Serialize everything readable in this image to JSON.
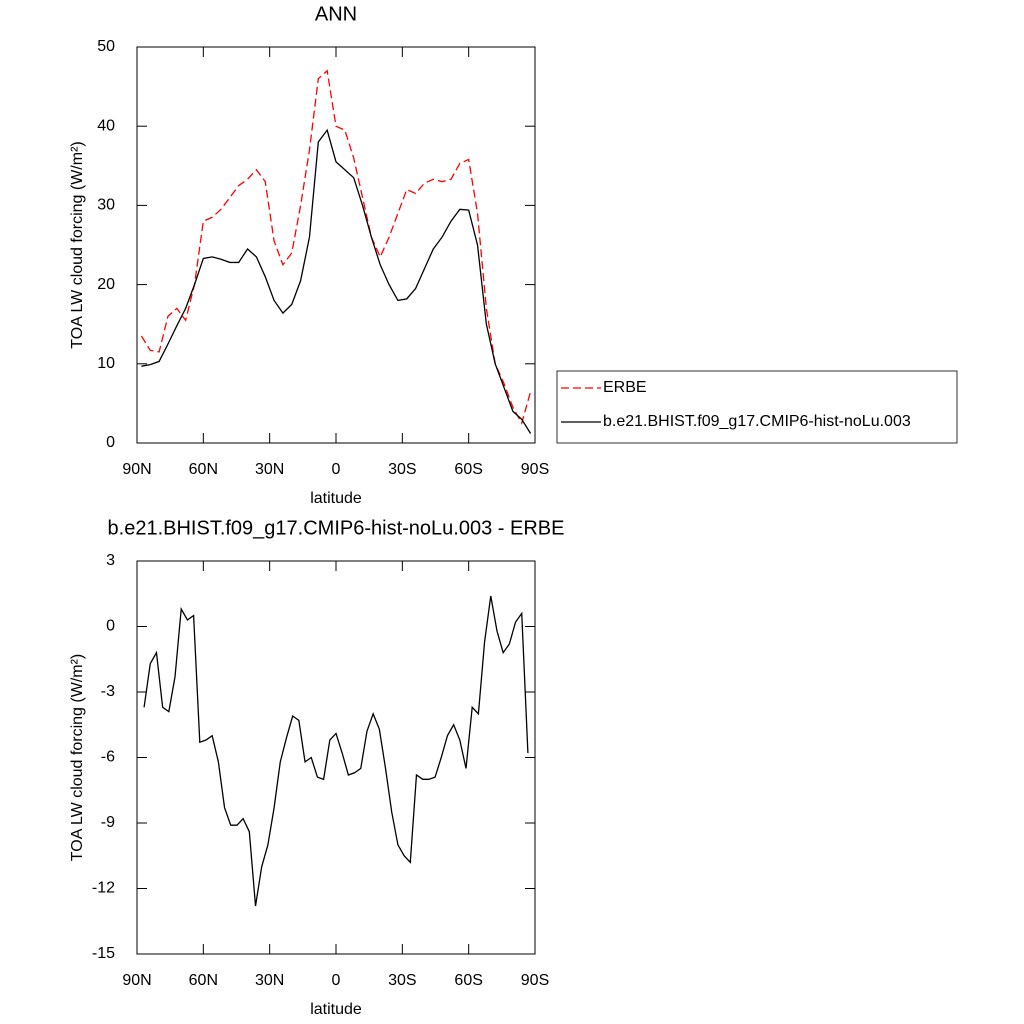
{
  "chart_data": [
    {
      "type": "line",
      "title": "ANN",
      "xlabel": "latitude",
      "ylabel": "TOA LW cloud forcing (W/m²)",
      "x": [
        88,
        84,
        80,
        76,
        72,
        68,
        64,
        60,
        56,
        52,
        48,
        44,
        40,
        36,
        32,
        28,
        24,
        20,
        16,
        12,
        8,
        4,
        0,
        -4,
        -8,
        -12,
        -16,
        -20,
        -24,
        -28,
        -32,
        -36,
        -40,
        -44,
        -48,
        -52,
        -56,
        -60,
        -64,
        -68,
        -72,
        -76,
        -80,
        -84,
        -88
      ],
      "series": [
        {
          "name": "ERBE",
          "color": "#ff0000",
          "linestyle": "dashed",
          "values": [
            13.5,
            11.7,
            11.5,
            16,
            17,
            15.5,
            20,
            28,
            28.5,
            29.5,
            31,
            32.5,
            33.3,
            34.5,
            33,
            25.5,
            22.5,
            24,
            30,
            37,
            46,
            47,
            40,
            39.5,
            36,
            31,
            26,
            23.5,
            26,
            29,
            32,
            31.5,
            32.8,
            33.3,
            33,
            33.3,
            35.3,
            35.8,
            29,
            17,
            10,
            7.5,
            4.5,
            2.5,
            6.5
          ]
        },
        {
          "name": "b.e21.BHIST.f09_g17.CMIP6-hist-noLu.003",
          "color": "#000000",
          "linestyle": "solid",
          "values": [
            9.7,
            9.9,
            10.3,
            12.5,
            14.8,
            17,
            20,
            23.3,
            23.5,
            23.2,
            22.8,
            22.8,
            24.5,
            23.5,
            21,
            18,
            16.4,
            17.5,
            20.5,
            26,
            38,
            39.5,
            35.5,
            34.5,
            33.5,
            30,
            26,
            22.5,
            20,
            18,
            18.2,
            19.5,
            22,
            24.5,
            26,
            28,
            29.5,
            29.4,
            25,
            15,
            10,
            7,
            4,
            3,
            1.2
          ]
        }
      ],
      "xlim": [
        90,
        -90
      ],
      "xticks": [
        {
          "value": 90,
          "label": "90N"
        },
        {
          "value": 60,
          "label": "60N"
        },
        {
          "value": 30,
          "label": "30N"
        },
        0,
        {
          "value": -30,
          "label": "30S"
        },
        {
          "value": -60,
          "label": "60S"
        },
        {
          "value": -90,
          "label": "90S"
        }
      ],
      "ylim": [
        0,
        50
      ],
      "yticks": [
        0,
        10,
        20,
        30,
        40,
        50
      ],
      "legend": "right"
    },
    {
      "type": "line",
      "title": "b.e21.BHIST.f09_g17.CMIP6-hist-noLu.003 - ERBE",
      "xlabel": "latitude",
      "ylabel": "TOA LW cloud forcing (W/m²)",
      "x": [
        86.8,
        84,
        81.2,
        78.4,
        75.6,
        72.8,
        70,
        67.2,
        64.4,
        61.6,
        58.8,
        56,
        53.2,
        50.4,
        47.6,
        44.8,
        42,
        39.2,
        36.4,
        33.6,
        30.8,
        28,
        25.2,
        22.4,
        19.6,
        16.8,
        14,
        11.2,
        8.4,
        5.6,
        2.8,
        0,
        -2.8,
        -5.6,
        -8.4,
        -11.2,
        -14,
        -16.8,
        -19.6,
        -22.4,
        -25.2,
        -28,
        -30.8,
        -33.6,
        -36.4,
        -39.2,
        -42,
        -44.8,
        -47.6,
        -50.4,
        -53.2,
        -56,
        -58.8,
        -61.6,
        -64.4,
        -67.2,
        -70,
        -72.8,
        -75.6,
        -78.4,
        -81.2,
        -84,
        -86.8
      ],
      "series": [
        {
          "color": "#000000",
          "linestyle": "solid",
          "values": [
            -3.7,
            -1.7,
            -1.2,
            -3.7,
            -3.9,
            -2.3,
            0.8,
            0.3,
            0.5,
            -5.3,
            -5.2,
            -5,
            -6.2,
            -8.3,
            -9.1,
            -9.1,
            -8.8,
            -9.4,
            -12.8,
            -11,
            -10,
            -8.3,
            -6.2,
            -5.1,
            -4.1,
            -4.3,
            -6.2,
            -6,
            -6.9,
            -7,
            -5.2,
            -4.9,
            -5.8,
            -6.8,
            -6.7,
            -6.5,
            -4.8,
            -4,
            -4.7,
            -6.5,
            -8.5,
            -10,
            -10.5,
            -10.8,
            -6.8,
            -7,
            -7,
            -6.9,
            -6,
            -5,
            -4.5,
            -5.2,
            -6.5,
            -3.7,
            -4,
            -0.7,
            1.4,
            -0.2,
            -1.2,
            -0.8,
            0.2,
            0.6,
            -5.8
          ]
        }
      ],
      "xlim": [
        90,
        -90
      ],
      "xticks": [
        {
          "value": 90,
          "label": "90N"
        },
        {
          "value": 60,
          "label": "60N"
        },
        {
          "value": 30,
          "label": "30N"
        },
        0,
        {
          "value": -30,
          "label": "30S"
        },
        {
          "value": -60,
          "label": "60S"
        },
        {
          "value": -90,
          "label": "90S"
        }
      ],
      "ylim": [
        -15,
        3
      ],
      "yticks": [
        3,
        0,
        -3,
        -6,
        -9,
        -12,
        -15
      ]
    }
  ]
}
